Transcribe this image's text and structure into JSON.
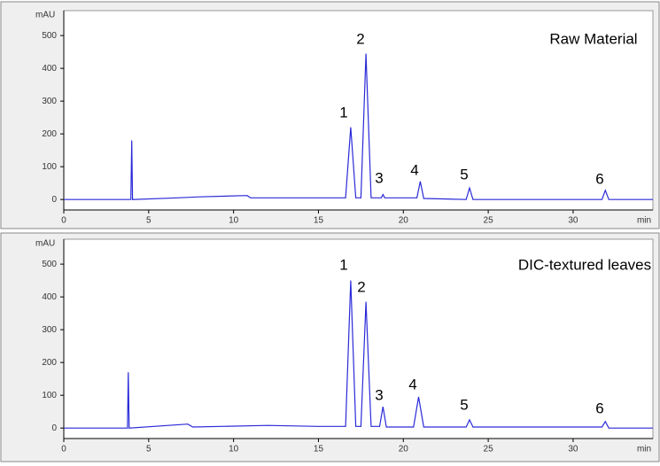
{
  "chart_data": [
    {
      "type": "line",
      "title": "Raw Material",
      "ylabel": "mAU",
      "xlabel": "min",
      "color": "#2a2ad8",
      "xlim": [
        0,
        34.7
      ],
      "ylim": [
        -32,
        576
      ],
      "xticks": [
        0,
        5,
        10,
        15,
        20,
        25,
        30
      ],
      "yticks": [
        0,
        100,
        200,
        300,
        400,
        500
      ],
      "x": [
        0,
        3.95,
        4.0,
        4.05,
        6.7,
        8,
        10.8,
        11,
        15,
        16.6,
        16.9,
        17.2,
        17.5,
        17.8,
        18.1,
        18.7,
        18.8,
        18.9,
        20.8,
        21.0,
        21.2,
        23.7,
        23.9,
        24.1,
        31.7,
        31.9,
        32.1,
        34.7
      ],
      "values": [
        0,
        0,
        180,
        0,
        5,
        8,
        12,
        5,
        5,
        5,
        220,
        5,
        5,
        445,
        5,
        5,
        15,
        5,
        5,
        55,
        3,
        0,
        35,
        0,
        0,
        28,
        0,
        0
      ],
      "peak_labels": [
        "1",
        "2",
        "3",
        "4",
        "5",
        "6"
      ]
    },
    {
      "type": "line",
      "title": "DIC-textured leaves",
      "ylabel": "mAU",
      "xlabel": "min",
      "color": "#2a2ad8",
      "xlim": [
        0,
        34.7
      ],
      "ylim": [
        -32,
        576
      ],
      "xticks": [
        0,
        5,
        10,
        15,
        20,
        25,
        30
      ],
      "yticks": [
        0,
        100,
        200,
        300,
        400,
        500
      ],
      "x": [
        0,
        3.75,
        3.8,
        3.85,
        7.3,
        7.6,
        12,
        15,
        16.6,
        16.9,
        17.2,
        17.5,
        17.8,
        18.1,
        18.6,
        18.8,
        19.0,
        20.6,
        20.9,
        21.2,
        23.7,
        23.9,
        24.1,
        31.7,
        31.9,
        32.1,
        34.7
      ],
      "values": [
        0,
        0,
        170,
        0,
        12,
        3,
        8,
        5,
        5,
        450,
        5,
        5,
        385,
        5,
        5,
        65,
        3,
        3,
        95,
        3,
        3,
        25,
        3,
        3,
        20,
        0,
        0
      ],
      "peak_labels": [
        "1",
        "2",
        "3",
        "4",
        "5",
        "6"
      ]
    }
  ]
}
